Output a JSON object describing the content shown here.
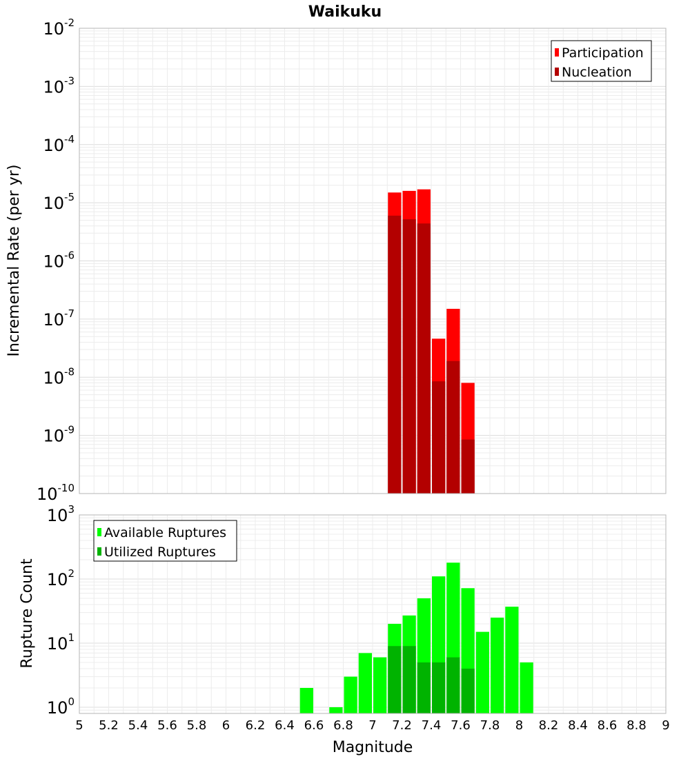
{
  "chart_data": [
    {
      "type": "bar",
      "title": "Waikuku",
      "xlabel": "",
      "ylabel": "Incremental Rate (per yr)",
      "yscale": "log",
      "ylim": [
        1e-10,
        0.01
      ],
      "xlim": [
        5,
        9
      ],
      "y_ticks": [
        {
          "base": "10",
          "exp": "-10"
        },
        {
          "base": "10",
          "exp": "-9"
        },
        {
          "base": "10",
          "exp": "-8"
        },
        {
          "base": "10",
          "exp": "-7"
        },
        {
          "base": "10",
          "exp": "-6"
        },
        {
          "base": "10",
          "exp": "-5"
        },
        {
          "base": "10",
          "exp": "-4"
        },
        {
          "base": "10",
          "exp": "-3"
        },
        {
          "base": "10",
          "exp": "-2"
        }
      ],
      "grid": true,
      "legend_position": "top-right",
      "bar_width": 0.1,
      "series": [
        {
          "name": "Participation",
          "color": "#ff0000",
          "x": [
            7.15,
            7.25,
            7.35,
            7.45,
            7.55,
            7.65
          ],
          "values": [
            1.5e-05,
            1.6e-05,
            1.7e-05,
            4.6e-08,
            1.5e-07,
            8e-09
          ]
        },
        {
          "name": "Nucleation",
          "color": "#b30000",
          "x": [
            7.15,
            7.25,
            7.35,
            7.45,
            7.55,
            7.65
          ],
          "values": [
            6e-06,
            5.2e-06,
            4.4e-06,
            8.5e-09,
            1.9e-08,
            8.5e-10
          ]
        }
      ]
    },
    {
      "type": "bar",
      "title": "",
      "xlabel": "Magnitude",
      "ylabel": "Rupture Count",
      "yscale": "log",
      "ylim": [
        0.8,
        1000
      ],
      "xlim": [
        5,
        9
      ],
      "x_ticks": [
        "5",
        "5.2",
        "5.4",
        "5.6",
        "5.8",
        "6",
        "6.2",
        "6.4",
        "6.6",
        "6.8",
        "7",
        "7.2",
        "7.4",
        "7.6",
        "7.8",
        "8",
        "8.2",
        "8.4",
        "8.6",
        "8.8",
        "9"
      ],
      "y_ticks": [
        {
          "base": "10",
          "exp": "0",
          "value": 1
        },
        {
          "base": "10",
          "exp": "1",
          "value": 10
        },
        {
          "base": "10",
          "exp": "2",
          "value": 100
        },
        {
          "base": "10",
          "exp": "3",
          "value": 1000
        }
      ],
      "grid": true,
      "legend_position": "top-left",
      "bar_width": 0.1,
      "series": [
        {
          "name": "Available Ruptures",
          "color": "#00ff00",
          "x": [
            6.55,
            6.75,
            6.85,
            6.95,
            7.05,
            7.15,
            7.25,
            7.35,
            7.45,
            7.55,
            7.65,
            7.75,
            7.85,
            7.95,
            8.05
          ],
          "values": [
            2,
            1,
            3,
            7,
            6,
            20,
            27,
            50,
            110,
            180,
            72,
            15,
            25,
            37,
            5
          ]
        },
        {
          "name": "Utilized Ruptures",
          "color": "#00b300",
          "x": [
            7.15,
            7.25,
            7.35,
            7.45,
            7.55,
            7.65
          ],
          "values": [
            9,
            9,
            5,
            5,
            6,
            4
          ]
        }
      ]
    }
  ]
}
